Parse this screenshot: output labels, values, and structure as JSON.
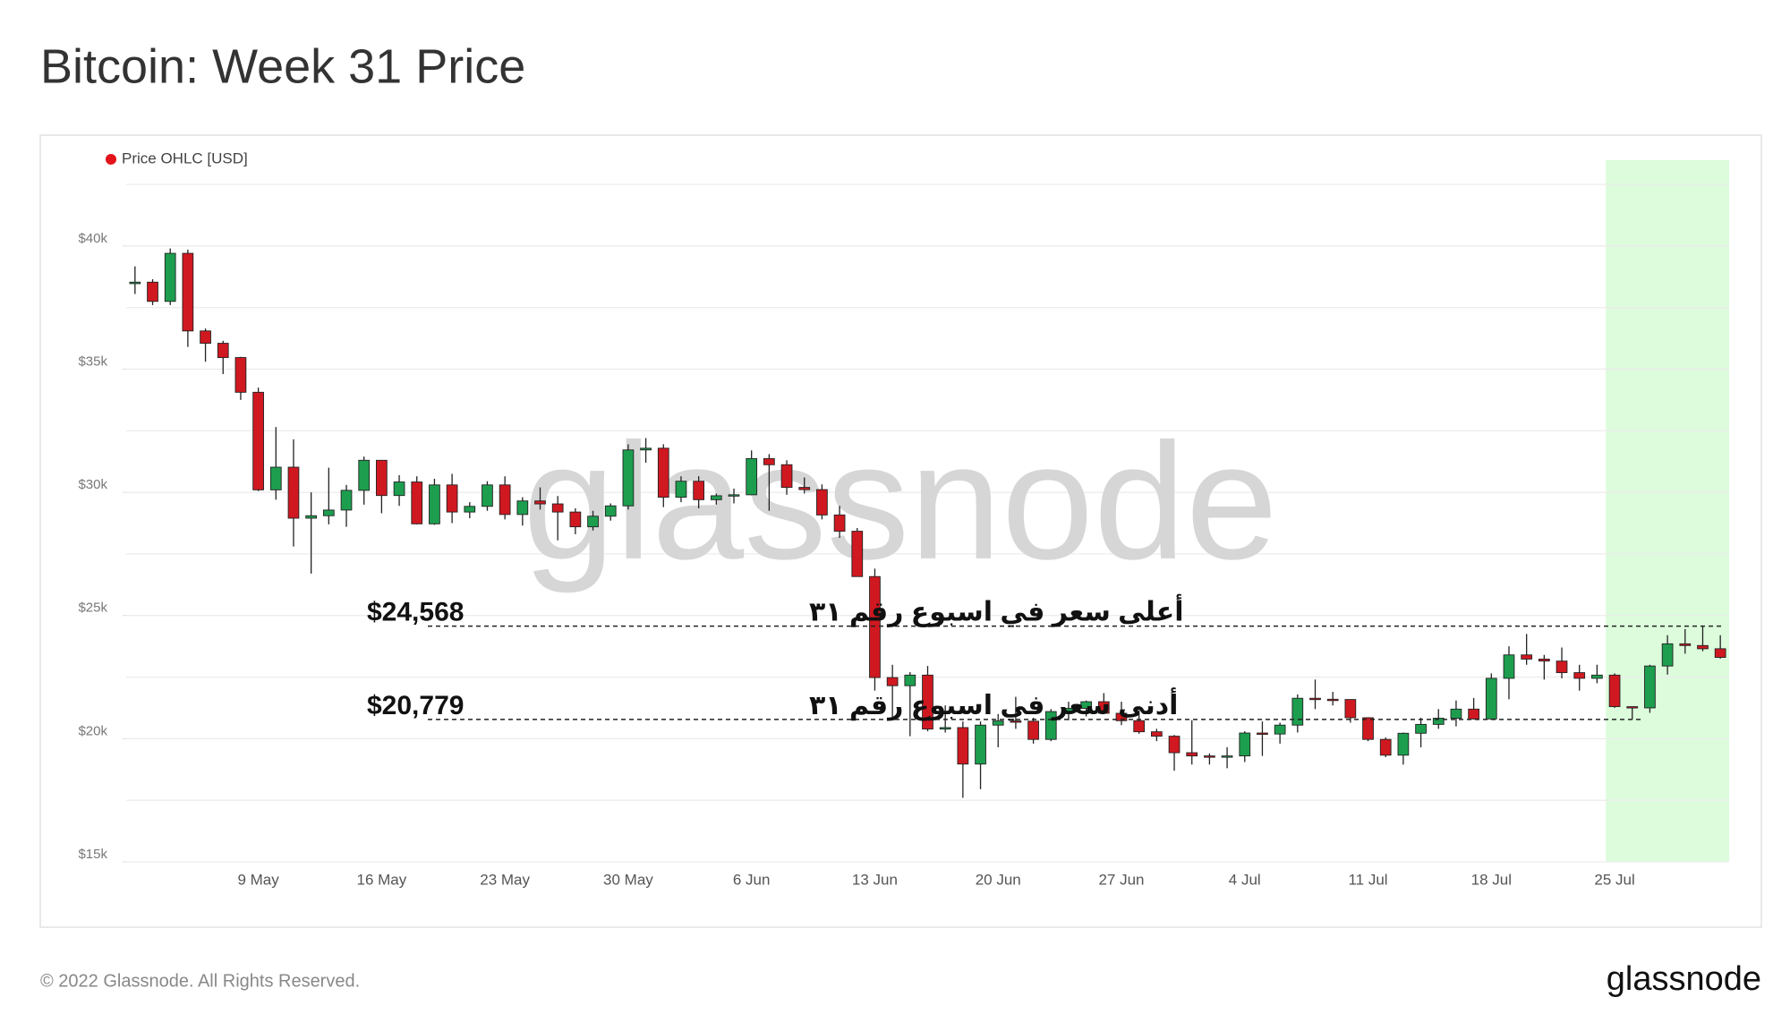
{
  "chart_data": {
    "type": "candlestick",
    "title": "Bitcoin: Week 31 Price",
    "legend": "Price OHLC [USD]",
    "legend_color": "#e3131b",
    "watermark": "glassnode",
    "footer": "© 2022 Glassnode. All Rights Reserved.",
    "logo": "glassnode",
    "up_color": "#1d9e4f",
    "down_color": "#d01820",
    "grid": true,
    "grid_step": 2500,
    "highlight": {
      "from": 84,
      "to": 90,
      "color": "#dcfcdc"
    },
    "ylim": [
      15000,
      42500
    ],
    "yticks": [
      {
        "value": 15000,
        "label": "$15k"
      },
      {
        "value": 20000,
        "label": "$20k"
      },
      {
        "value": 25000,
        "label": "$25k"
      },
      {
        "value": 30000,
        "label": "$30k"
      },
      {
        "value": 35000,
        "label": "$35k"
      },
      {
        "value": 40000,
        "label": "$40k"
      }
    ],
    "categories": [
      null,
      null,
      null,
      null,
      null,
      null,
      null,
      "9 May",
      null,
      null,
      null,
      null,
      null,
      null,
      "16 May",
      null,
      null,
      null,
      null,
      null,
      null,
      "23 May",
      null,
      null,
      null,
      null,
      null,
      null,
      "30 May",
      null,
      null,
      null,
      null,
      null,
      null,
      "6 Jun",
      null,
      null,
      null,
      null,
      null,
      null,
      "13 Jun",
      null,
      null,
      null,
      null,
      null,
      null,
      "20 Jun",
      null,
      null,
      null,
      null,
      null,
      null,
      "27 Jun",
      null,
      null,
      null,
      null,
      null,
      null,
      "4 Jul",
      null,
      null,
      null,
      null,
      null,
      null,
      "11 Jul",
      null,
      null,
      null,
      null,
      null,
      null,
      "18 Jul",
      null,
      null,
      null,
      null,
      null,
      null,
      "25 Jul",
      null,
      null,
      null,
      null,
      null,
      null
    ],
    "open": [
      38470,
      38530,
      37750,
      39700,
      36550,
      36050,
      35470,
      34060,
      30100,
      31020,
      28950,
      29050,
      29280,
      30080,
      31300,
      29870,
      30420,
      28720,
      30300,
      29200,
      29430,
      30300,
      29100,
      29650,
      29530,
      29200,
      28600,
      29030,
      29450,
      31720,
      31790,
      29800,
      30450,
      29700,
      29860,
      29900,
      31370,
      31120,
      30200,
      30110,
      29080,
      28420,
      26580,
      22480,
      22150,
      22580,
      20390,
      20450,
      18970,
      20550,
      20720,
      20710,
      19970,
      21100,
      21230,
      21500,
      21030,
      20730,
      20280,
      20100,
      19430,
      19300,
      19250,
      19300,
      20230,
      20190,
      20550,
      21640,
      21600,
      21590,
      20850,
      19970,
      19330,
      20220,
      20580,
      20830,
      21200,
      20800,
      22450,
      23400,
      23230,
      23150,
      22680,
      22450,
      22580,
      21300,
      21250,
      22950,
      23850,
      23780,
      23650
    ],
    "high": [
      39170,
      38650,
      39900,
      39850,
      36650,
      36150,
      35500,
      34250,
      32650,
      32150,
      30000,
      31000,
      30300,
      31450,
      31300,
      30700,
      30650,
      30550,
      30750,
      29600,
      30450,
      30650,
      29800,
      30200,
      29850,
      29350,
      29250,
      29550,
      31950,
      32200,
      31950,
      30650,
      30650,
      29950,
      30150,
      31700,
      31550,
      31300,
      30600,
      30320,
      29450,
      28550,
      26900,
      23000,
      22700,
      22950,
      21350,
      20700,
      20700,
      21000,
      21700,
      20850,
      21200,
      21500,
      21550,
      21850,
      21500,
      21150,
      20400,
      20150,
      20750,
      19400,
      19650,
      20300,
      20700,
      20650,
      21800,
      22400,
      21900,
      21600,
      20870,
      20050,
      20250,
      20850,
      21200,
      21550,
      21650,
      22650,
      23750,
      24250,
      23400,
      23700,
      23000,
      23000,
      22650,
      21300,
      23000,
      24200,
      24450,
      24568,
      24200
    ],
    "low": [
      38050,
      37600,
      37600,
      35900,
      35300,
      34800,
      33750,
      30050,
      29700,
      27800,
      26700,
      28700,
      28600,
      29500,
      29150,
      29450,
      28700,
      28680,
      28750,
      28950,
      29250,
      28900,
      28650,
      29300,
      28050,
      28300,
      28450,
      28850,
      29300,
      31200,
      29400,
      29600,
      29350,
      29500,
      29550,
      29880,
      29250,
      29900,
      29950,
      28900,
      28150,
      26600,
      21950,
      20850,
      20100,
      20300,
      20250,
      17600,
      17950,
      19650,
      20400,
      19800,
      19900,
      20750,
      20900,
      21000,
      20550,
      20200,
      19900,
      18700,
      18950,
      18950,
      18800,
      19050,
      19300,
      19800,
      20250,
      21200,
      21350,
      20650,
      19900,
      19250,
      18950,
      19650,
      20400,
      20500,
      20780,
      20770,
      21600,
      23000,
      22400,
      22450,
      21950,
      22250,
      21250,
      20779,
      21050,
      22600,
      23450,
      23550,
      23250
    ],
    "close": [
      38530,
      37750,
      39700,
      36550,
      36050,
      35470,
      34060,
      30100,
      31020,
      28950,
      29050,
      29280,
      30080,
      31300,
      29870,
      30420,
      28720,
      30300,
      29200,
      29430,
      30300,
      29100,
      29650,
      29530,
      29200,
      28600,
      29030,
      29450,
      31720,
      31790,
      29800,
      30450,
      29700,
      29860,
      29900,
      31370,
      31120,
      30200,
      30110,
      29080,
      28420,
      26580,
      22480,
      22150,
      22580,
      20390,
      20450,
      18970,
      20550,
      20720,
      20710,
      19970,
      21100,
      21230,
      21500,
      21030,
      20730,
      20280,
      20100,
      19430,
      19300,
      19250,
      19300,
      20230,
      20190,
      20550,
      21640,
      21600,
      21590,
      20850,
      19970,
      19330,
      20220,
      20580,
      20830,
      21200,
      20800,
      22450,
      23400,
      23230,
      23150,
      22680,
      22450,
      22580,
      21300,
      21250,
      22950,
      23850,
      23780,
      23650,
      23300
    ],
    "annotations": [
      {
        "text": "أعلى سعر في اسبوع رقم ٣١",
        "label": "$24,568",
        "value": 24568
      },
      {
        "text": "أدنى سعر في اسبوع رقم ٣١",
        "label": "$20,779",
        "value": 20779
      }
    ]
  }
}
